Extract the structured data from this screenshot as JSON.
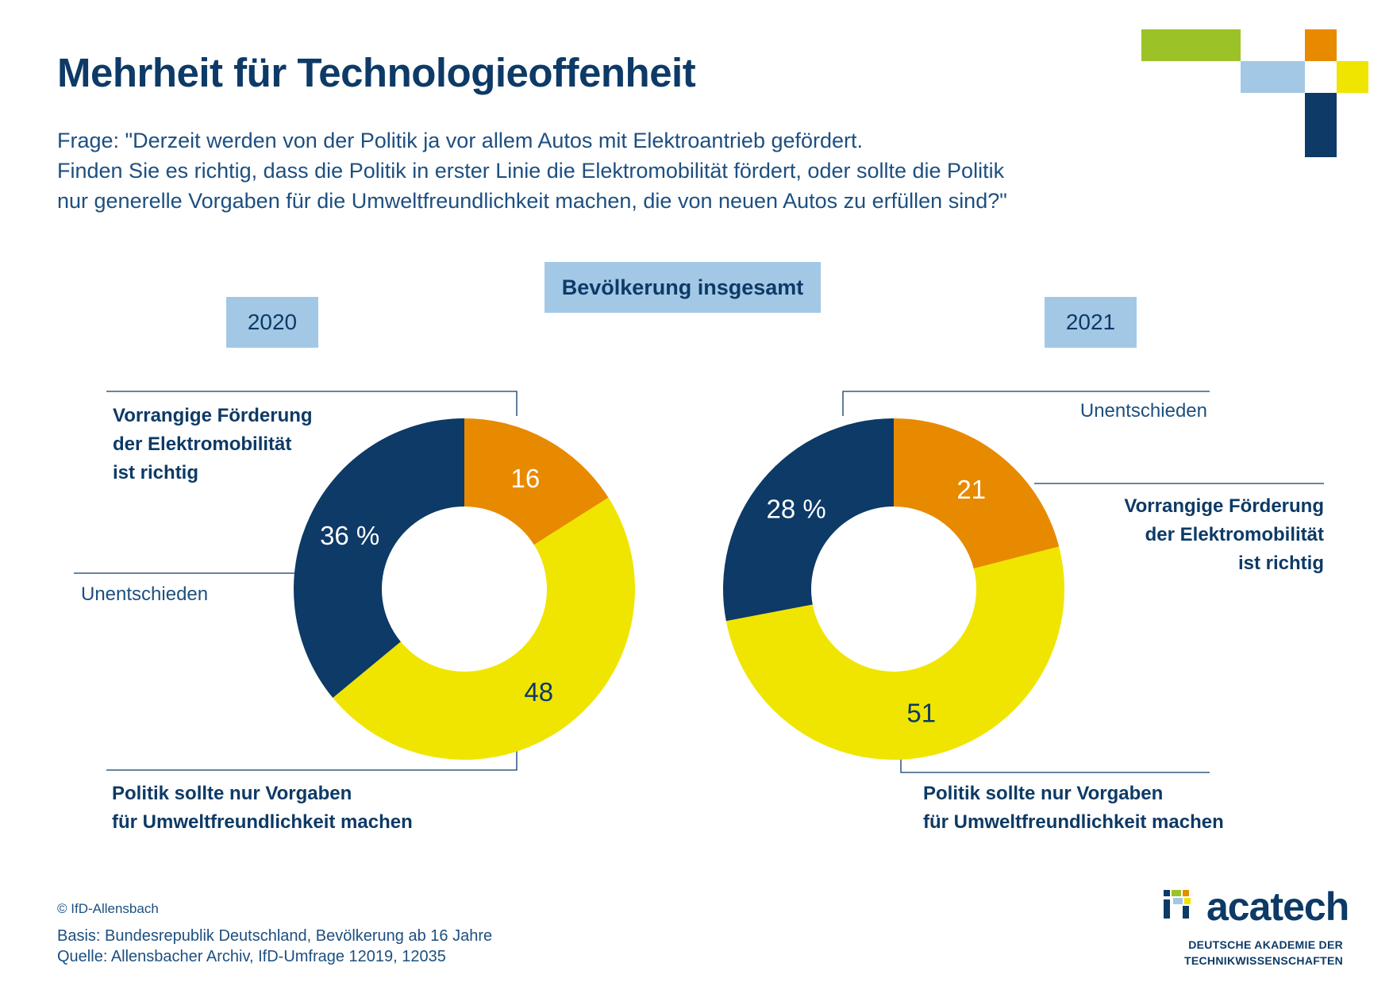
{
  "header": {
    "title": "Mehrheit für Technologieoffenheit",
    "question_lines": [
      "Frage: \"Derzeit werden von der Politik ja vor allem Autos mit Elektroantrieb gefördert.",
      "Finden Sie es richtig, dass die Politik in erster Linie die Elektromobilität fördert, oder sollte die Politik",
      "nur generelle Vorgaben für die Umweltfreundlichkeit machen, die von neuen Autos zu erfüllen sind?\""
    ]
  },
  "group_label": "Bevölkerung insgesamt",
  "colors": {
    "elektro": "#e88a00",
    "vorgaben": "#f0e500",
    "unentschieden": "#0d3a66",
    "box": "#a3c8e6",
    "logo_green": "#9bc226",
    "logo_orange": "#e88a00",
    "logo_lightblue": "#a3c8e6",
    "logo_yellow": "#f0e500",
    "logo_navy": "#0d3a66"
  },
  "chart_data": [
    {
      "type": "pie",
      "year": "2020",
      "categories": [
        "Vorrangige Förderung der Elektromobilität ist richtig",
        "Politik sollte nur Vorgaben für Umweltfreundlichkeit machen",
        "Unentschieden"
      ],
      "values": [
        16,
        48,
        36
      ],
      "value_labels": [
        "16",
        "48",
        "36 %"
      ],
      "legend": {
        "elektro_lines": [
          "Vorrangige Förderung",
          "der Elektromobilität",
          "ist richtig"
        ],
        "vorgaben_lines": [
          "Politik sollte nur Vorgaben",
          "für Umweltfreundlichkeit machen"
        ],
        "unentschieden": "Unentschieden"
      }
    },
    {
      "type": "pie",
      "year": "2021",
      "categories": [
        "Vorrangige Förderung der Elektromobilität ist richtig",
        "Politik sollte nur Vorgaben für Umweltfreundlichkeit machen",
        "Unentschieden"
      ],
      "values": [
        21,
        51,
        28
      ],
      "value_labels": [
        "21",
        "51",
        "28 %"
      ],
      "legend": {
        "elektro_lines": [
          "Vorrangige Förderung",
          "der Elektromobilität",
          "ist richtig"
        ],
        "vorgaben_lines": [
          "Politik sollte nur Vorgaben",
          "für Umweltfreundlichkeit machen"
        ],
        "unentschieden": "Unentschieden"
      }
    }
  ],
  "footer": {
    "copyright": "© IfD-Allensbach",
    "basis": "Basis: Bundesrepublik Deutschland, Bevölkerung ab 16 Jahre",
    "quelle": "Quelle: Allensbacher Archiv, IfD-Umfrage 12019, 12035"
  },
  "logo": {
    "word": "acatech",
    "sub_lines": [
      "DEUTSCHE AKADEMIE DER",
      "TECHNIKWISSENSCHAFTEN"
    ]
  }
}
